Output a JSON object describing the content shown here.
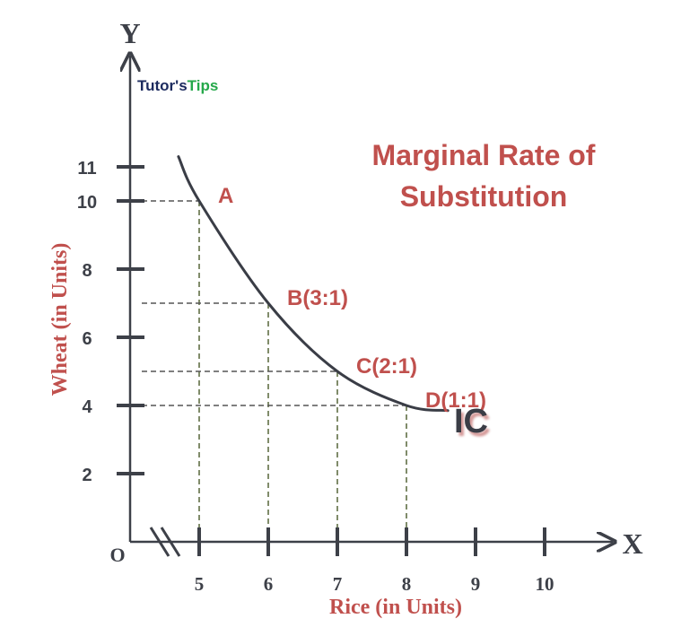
{
  "logo": {
    "part1": "Tutor's",
    "part2": "Tips"
  },
  "colors": {
    "axis": "#3d4048",
    "accent": "#c0504d",
    "curve": "#3a3d46",
    "dash": "#555555",
    "dash_vertical": "#4a5a2a",
    "logo_navy": "#1b2a5e",
    "logo_green": "#25a84a"
  },
  "chart_data": {
    "type": "line",
    "title": "Marginal Rate of Substitution",
    "xlabel": "Rice (in Units)",
    "ylabel": "Wheat (in Units)",
    "x_axis_letter": "X",
    "y_axis_letter": "Y",
    "origin_label": "O",
    "curve_label": "IC",
    "x_ticks": [
      5,
      6,
      7,
      8,
      9,
      10
    ],
    "y_ticks": [
      2,
      4,
      6,
      8,
      10,
      11
    ],
    "x_range": [
      4,
      10.8
    ],
    "y_range": [
      0,
      12
    ],
    "axis_break": true,
    "curve": [
      {
        "x": 4.7,
        "y": 11.3
      },
      {
        "x": 5,
        "y": 10
      },
      {
        "x": 6,
        "y": 7
      },
      {
        "x": 7,
        "y": 5
      },
      {
        "x": 8,
        "y": 4
      },
      {
        "x": 8.6,
        "y": 3.85
      }
    ],
    "points": [
      {
        "label": "A",
        "x": 5,
        "y": 10
      },
      {
        "label": "B(3:1)",
        "x": 6,
        "y": 7
      },
      {
        "label": "C(2:1)",
        "x": 7,
        "y": 5
      },
      {
        "label": "D(1:1)",
        "x": 8,
        "y": 4
      }
    ]
  }
}
